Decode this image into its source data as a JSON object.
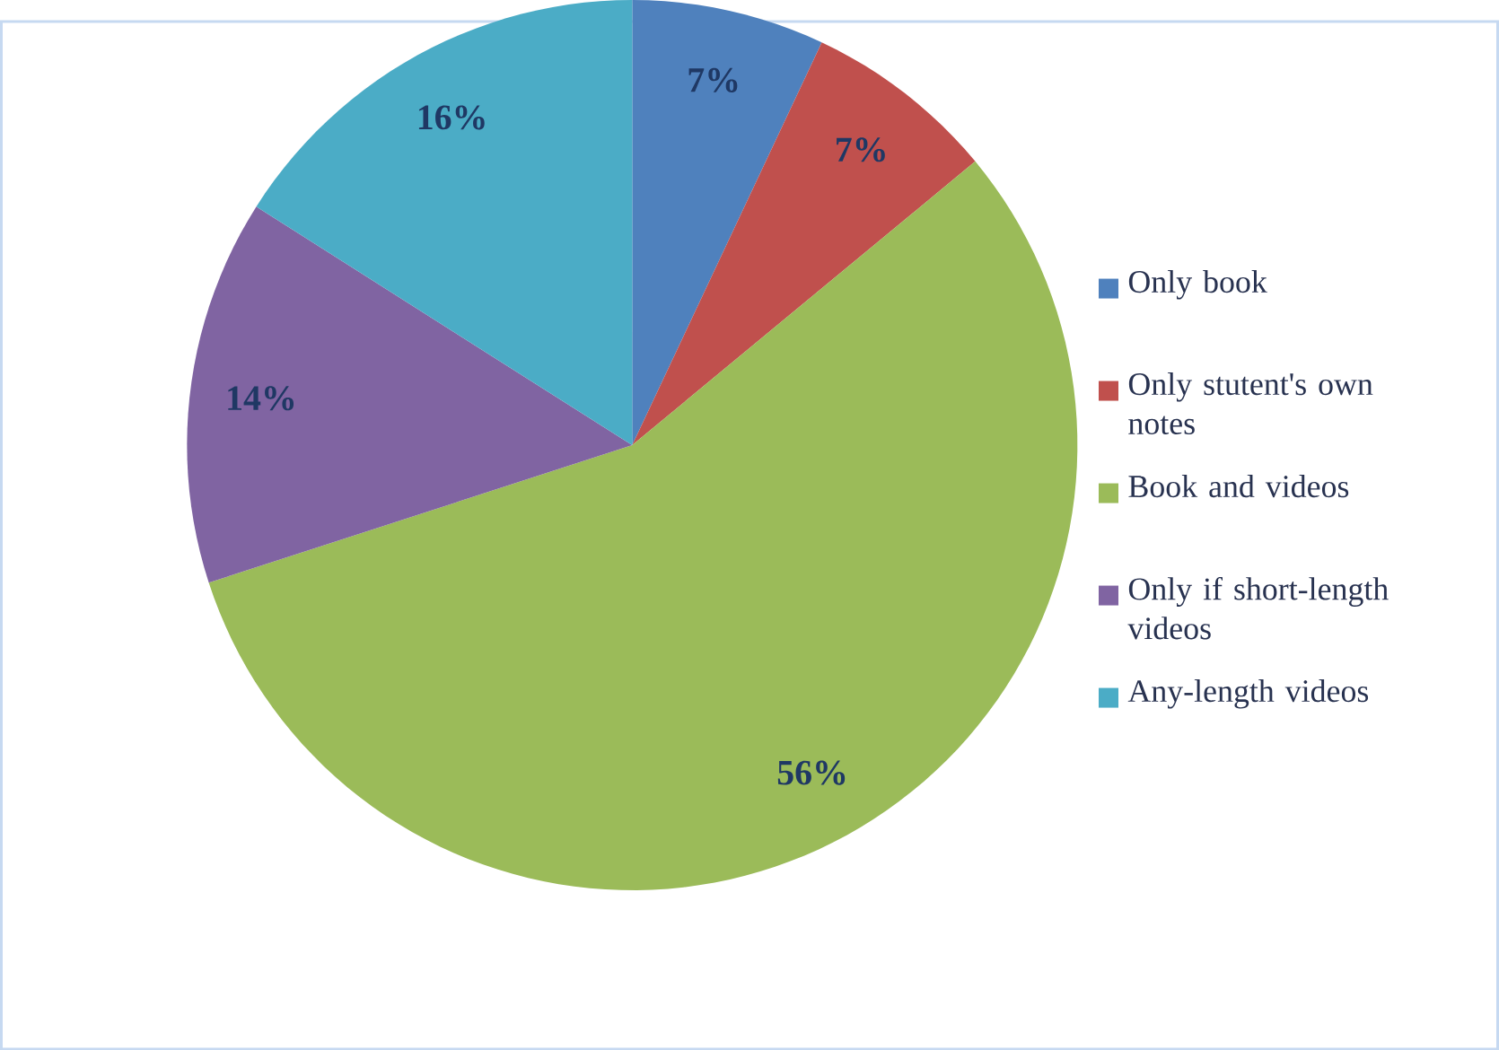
{
  "chart_data": {
    "type": "pie",
    "categories": [
      "Only book",
      "Only stutent's own notes",
      "Book and videos",
      "Only if short-length videos",
      "Any-length videos"
    ],
    "values": [
      7,
      7,
      56,
      14,
      16
    ],
    "colors": [
      "#4f81bd",
      "#c0504d",
      "#9bbb59",
      "#8064a2",
      "#4bacc6"
    ],
    "value_labels": [
      "7%",
      "7%",
      "56%",
      "14%",
      "16%"
    ],
    "legend": "right"
  }
}
